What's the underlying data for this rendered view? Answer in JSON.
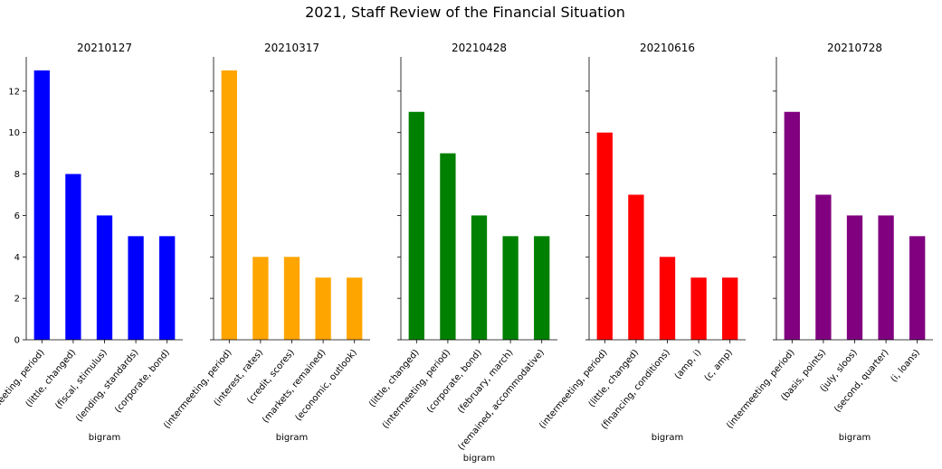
{
  "figure": {
    "title": "2021, Staff Review of the Financial Situation"
  },
  "chart_data": [
    {
      "type": "bar",
      "title": "20210127",
      "xlabel": "bigram",
      "ylabel": "",
      "categories": [
        "(intermeeting, period)",
        "(little, changed)",
        "(fiscal, stimulus)",
        "(lending, standards)",
        "(corporate, bond)"
      ],
      "values": [
        13,
        8,
        6,
        5,
        5
      ],
      "color": "#0000ff",
      "ylim": [
        0,
        13.65
      ],
      "yticks": [
        "0",
        "2",
        "4",
        "6",
        "8",
        "10",
        "12"
      ],
      "grid": false
    },
    {
      "type": "bar",
      "title": "20210317",
      "xlabel": "bigram",
      "ylabel": "",
      "categories": [
        "(intermeeting, period)",
        "(interest, rates)",
        "(credit, scores)",
        "(markets, remained)",
        "(economic, outlook)"
      ],
      "values": [
        13,
        4,
        4,
        3,
        3
      ],
      "color": "#ffa500",
      "ylim": [
        0,
        13.65
      ],
      "grid": false
    },
    {
      "type": "bar",
      "title": "20210428",
      "xlabel": "bigram",
      "ylabel": "",
      "categories": [
        "(little, changed)",
        "(intermeeting, period)",
        "(corporate, bond)",
        "(february, march)",
        "(remained, accommodative)"
      ],
      "values": [
        11,
        9,
        6,
        5,
        5
      ],
      "color": "#008000",
      "ylim": [
        0,
        13.65
      ],
      "grid": false
    },
    {
      "type": "bar",
      "title": "20210616",
      "xlabel": "bigram",
      "ylabel": "",
      "categories": [
        "(intermeeting, period)",
        "(little, changed)",
        "(financing, conditions)",
        "(amp, i)",
        "(c, amp)"
      ],
      "values": [
        10,
        7,
        4,
        3,
        3
      ],
      "color": "#ff0000",
      "ylim": [
        0,
        13.65
      ],
      "grid": false
    },
    {
      "type": "bar",
      "title": "20210728",
      "xlabel": "bigram",
      "ylabel": "",
      "categories": [
        "(intermeeting, period)",
        "(basis, points)",
        "(july, sloos)",
        "(second, quarter)",
        "(i, loans)"
      ],
      "values": [
        11,
        7,
        6,
        6,
        5
      ],
      "color": "#800080",
      "ylim": [
        0,
        13.65
      ],
      "grid": false
    }
  ]
}
